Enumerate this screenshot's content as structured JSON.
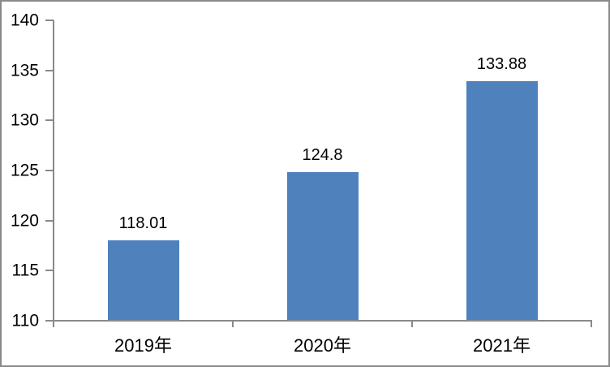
{
  "chart_data": {
    "type": "bar",
    "categories": [
      "2019年",
      "2020年",
      "2021年"
    ],
    "values": [
      118.01,
      124.8,
      133.88
    ],
    "data_labels": [
      "118.01",
      "124.8",
      "133.88"
    ],
    "title": "",
    "xlabel": "",
    "ylabel": "",
    "ylim": [
      110,
      140
    ],
    "yticks": [
      110,
      115,
      120,
      125,
      130,
      135,
      140
    ],
    "grid": false,
    "legend": "none",
    "colors": {
      "bar_fill": "#4F81BD",
      "axis": "#898989",
      "text": "#000000",
      "background": "#FFFFFF",
      "frame_border": "#8A8A8A"
    }
  }
}
